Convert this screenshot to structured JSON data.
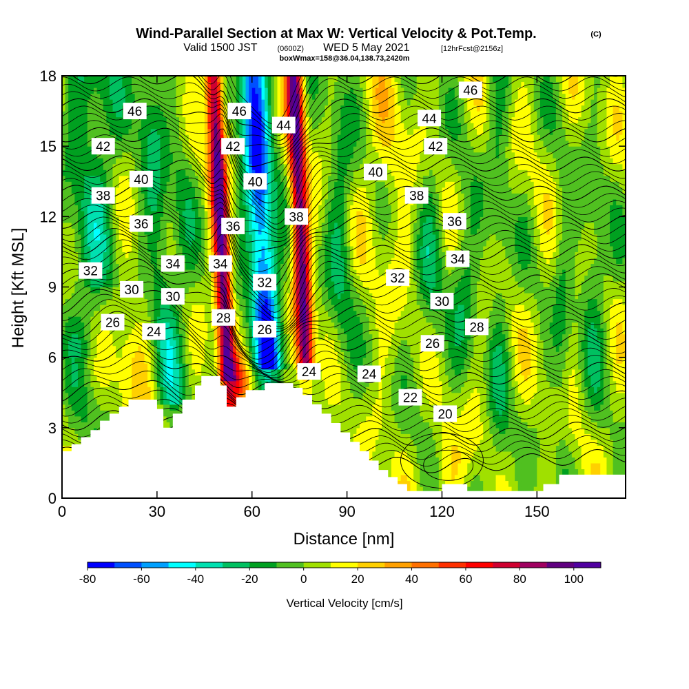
{
  "chart_data": {
    "type": "heatmap",
    "title": "Wind-Parallel Section at Max W: Vertical Velocity & Pot.Temp.",
    "title_mark": "(C)",
    "subtitle": {
      "valid_prefix": "Valid 1500 JST",
      "utc": "(0600Z)",
      "date": "WED 5 May 2021",
      "forecast": "[12hrFcst@2156z]"
    },
    "box_info": "boxWmax=158@36.04,138.73,2420m",
    "xlabel": "Distance [nm]",
    "ylabel": "Height [Kft MSL]",
    "xlim": [
      0,
      178
    ],
    "ylim": [
      0,
      18
    ],
    "x_ticks": [
      0,
      30,
      60,
      90,
      120,
      150
    ],
    "y_ticks": [
      0,
      3,
      6,
      9,
      12,
      15,
      18
    ],
    "colorbar": {
      "title": "Vertical Velocity [cm/s]",
      "min": -80,
      "max": 110,
      "step": 10,
      "labels": [
        -80,
        -60,
        -40,
        -20,
        0,
        20,
        40,
        60,
        80,
        100
      ],
      "colors": [
        "#0000ff",
        "#0050ff",
        "#00a0ff",
        "#00ffff",
        "#00e0b0",
        "#00c060",
        "#00a020",
        "#50c020",
        "#a0e000",
        "#ffff00",
        "#ffd000",
        "#ffa000",
        "#ff7000",
        "#ff3000",
        "#ff0000",
        "#d00030",
        "#a00060",
        "#600080",
        "#5000a0"
      ]
    },
    "w_field": {
      "background_cm_s": 5,
      "features": [
        {
          "kind": "updraft",
          "x": 51,
          "w": 95
        },
        {
          "kind": "downdraft",
          "x": 64,
          "w": -65
        },
        {
          "kind": "updraft",
          "x": 76,
          "w": 90
        },
        {
          "kind": "downdraft",
          "x": 30,
          "w": -25
        }
      ]
    },
    "theta_contours": {
      "levels": [
        20,
        22,
        24,
        26,
        28,
        30,
        32,
        34,
        36,
        38,
        40,
        42,
        44,
        46
      ],
      "labels": [
        {
          "text": "46",
          "x": 23,
          "y": 16.5
        },
        {
          "text": "46",
          "x": 56,
          "y": 16.5
        },
        {
          "text": "46",
          "x": 129,
          "y": 17.4
        },
        {
          "text": "44",
          "x": 70,
          "y": 15.9
        },
        {
          "text": "44",
          "x": 116,
          "y": 16.2
        },
        {
          "text": "42",
          "x": 13,
          "y": 15.0
        },
        {
          "text": "42",
          "x": 54,
          "y": 15.0
        },
        {
          "text": "42",
          "x": 118,
          "y": 15.0
        },
        {
          "text": "40",
          "x": 25,
          "y": 13.6
        },
        {
          "text": "40",
          "x": 61,
          "y": 13.5
        },
        {
          "text": "40",
          "x": 99,
          "y": 13.9
        },
        {
          "text": "38",
          "x": 13,
          "y": 12.9
        },
        {
          "text": "38",
          "x": 74,
          "y": 12.0
        },
        {
          "text": "38",
          "x": 112,
          "y": 12.9
        },
        {
          "text": "36",
          "x": 25,
          "y": 11.7
        },
        {
          "text": "36",
          "x": 54,
          "y": 11.6
        },
        {
          "text": "36",
          "x": 124,
          "y": 11.8
        },
        {
          "text": "34",
          "x": 35,
          "y": 10.0
        },
        {
          "text": "34",
          "x": 50,
          "y": 10.0
        },
        {
          "text": "34",
          "x": 125,
          "y": 10.2
        },
        {
          "text": "32",
          "x": 9,
          "y": 9.7
        },
        {
          "text": "32",
          "x": 64,
          "y": 9.2
        },
        {
          "text": "32",
          "x": 106,
          "y": 9.4
        },
        {
          "text": "30",
          "x": 22,
          "y": 8.9
        },
        {
          "text": "30",
          "x": 35,
          "y": 8.6
        },
        {
          "text": "30",
          "x": 120,
          "y": 8.4
        },
        {
          "text": "28",
          "x": 51,
          "y": 7.7
        },
        {
          "text": "28",
          "x": 131,
          "y": 7.3
        },
        {
          "text": "26",
          "x": 16,
          "y": 7.5
        },
        {
          "text": "26",
          "x": 64,
          "y": 7.2
        },
        {
          "text": "26",
          "x": 117,
          "y": 6.6
        },
        {
          "text": "24",
          "x": 29,
          "y": 7.1
        },
        {
          "text": "24",
          "x": 78,
          "y": 5.4
        },
        {
          "text": "24",
          "x": 97,
          "y": 5.3
        },
        {
          "text": "22",
          "x": 110,
          "y": 4.3
        },
        {
          "text": "20",
          "x": 121,
          "y": 3.6
        }
      ]
    },
    "terrain_kft": [
      [
        0,
        2.0
      ],
      [
        3,
        2.0
      ],
      [
        3,
        2.3
      ],
      [
        6,
        2.3
      ],
      [
        6,
        2.6
      ],
      [
        9,
        2.6
      ],
      [
        9,
        2.9
      ],
      [
        12,
        2.9
      ],
      [
        12,
        3.3
      ],
      [
        15,
        3.3
      ],
      [
        15,
        3.6
      ],
      [
        18,
        3.6
      ],
      [
        18,
        3.9
      ],
      [
        21,
        3.9
      ],
      [
        21,
        4.2
      ],
      [
        30,
        4.2
      ],
      [
        30,
        3.8
      ],
      [
        32,
        3.8
      ],
      [
        32,
        3.0
      ],
      [
        35,
        3.0
      ],
      [
        35,
        3.6
      ],
      [
        38,
        3.6
      ],
      [
        38,
        4.2
      ],
      [
        42,
        4.2
      ],
      [
        42,
        4.8
      ],
      [
        44,
        4.8
      ],
      [
        44,
        5.2
      ],
      [
        50,
        5.2
      ],
      [
        50,
        4.8
      ],
      [
        52,
        4.8
      ],
      [
        52,
        3.9
      ],
      [
        55,
        3.9
      ],
      [
        55,
        4.3
      ],
      [
        58,
        4.3
      ],
      [
        58,
        4.6
      ],
      [
        64,
        4.6
      ],
      [
        64,
        4.9
      ],
      [
        73,
        4.9
      ],
      [
        73,
        4.7
      ],
      [
        76,
        4.7
      ],
      [
        76,
        4.4
      ],
      [
        79,
        4.4
      ],
      [
        79,
        4.0
      ],
      [
        82,
        4.0
      ],
      [
        82,
        3.6
      ],
      [
        85,
        3.6
      ],
      [
        85,
        3.2
      ],
      [
        88,
        3.2
      ],
      [
        88,
        2.8
      ],
      [
        91,
        2.8
      ],
      [
        91,
        2.4
      ],
      [
        94,
        2.4
      ],
      [
        94,
        2.0
      ],
      [
        97,
        2.0
      ],
      [
        97,
        1.6
      ],
      [
        100,
        1.6
      ],
      [
        100,
        1.2
      ],
      [
        103,
        1.2
      ],
      [
        103,
        0.9
      ],
      [
        106,
        0.9
      ],
      [
        106,
        0.6
      ],
      [
        109,
        0.6
      ],
      [
        109,
        0.3
      ],
      [
        120,
        0.3
      ],
      [
        120,
        0.6
      ],
      [
        128,
        0.6
      ],
      [
        128,
        0.3
      ],
      [
        152,
        0.3
      ],
      [
        152,
        0.6
      ],
      [
        157,
        0.6
      ],
      [
        157,
        1.0
      ],
      [
        178,
        1.0
      ]
    ]
  }
}
